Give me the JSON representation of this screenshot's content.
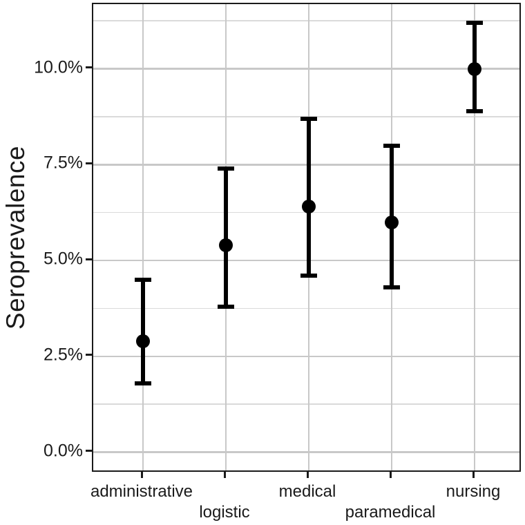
{
  "figure": {
    "background_color": "#ffffff",
    "panel_border_color": "#1a1a1a",
    "grid_major_color": "#c8c8c8",
    "grid_minor_color": "#dadada",
    "point_color": "#000000",
    "text_color": "#1a1a1a"
  },
  "chart_data": {
    "type": "scatter",
    "subtype": "point-range-errorbar",
    "title": "",
    "xlabel": "",
    "ylabel": "Seroprevalence",
    "categories": [
      "administrative",
      "logistic",
      "medical",
      "paramedical",
      "nursing"
    ],
    "series": [
      {
        "name": "seroprevalence_percent",
        "values": [
          2.9,
          5.4,
          6.4,
          6.0,
          10.0
        ],
        "ci_low": [
          1.8,
          3.8,
          4.6,
          4.3,
          8.9
        ],
        "ci_high": [
          4.5,
          7.4,
          8.7,
          8.0,
          11.2
        ]
      }
    ],
    "y_ticks": [
      0,
      2.5,
      5,
      7.5,
      10
    ],
    "y_tick_labels": [
      "0.0%",
      "2.5%",
      "5.0%",
      "7.5%",
      "10.0%"
    ],
    "y_minor_gridlines": [
      1.25,
      3.75,
      6.25,
      8.75,
      11.25
    ],
    "ylim": [
      -0.55,
      11.69
    ],
    "grid": "horizontal major+minor, vertical major at categories",
    "legend": "none",
    "x_label_rows": [
      0,
      1,
      0,
      1,
      0
    ]
  }
}
